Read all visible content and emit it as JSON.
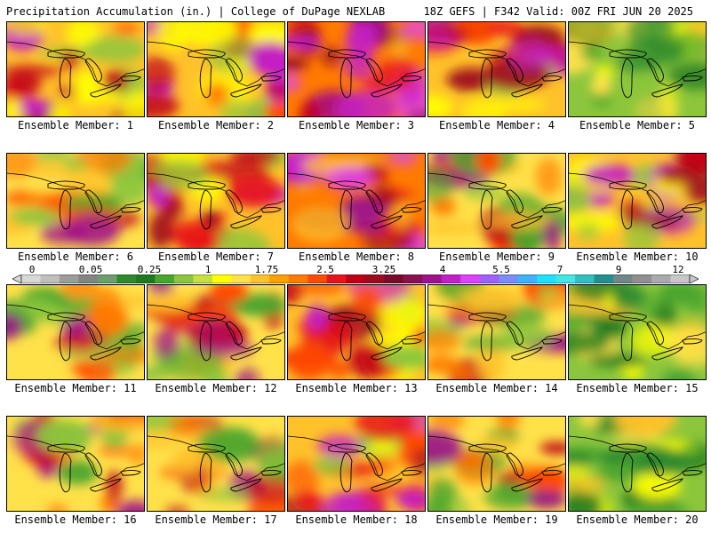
{
  "header": {
    "title": "Precipitation Accumulation (in.) | College of DuPage NEXLAB",
    "run_info": "18Z GEFS | F342 Valid: 00Z FRI JUN 20 2025"
  },
  "colorbar": {
    "labels": [
      "0",
      "0.05",
      "0.25",
      "1",
      "1.75",
      "2.5",
      "3.25",
      "4",
      "5.5",
      "7",
      "9",
      "12"
    ],
    "colors": [
      "#d8d8d8",
      "#bfbfbf",
      "#9c9c9c",
      "#848484",
      "#6e9e6e",
      "#2f8a2f",
      "#1f7a1f",
      "#4aa52e",
      "#8cc63c",
      "#c6e03c",
      "#ffff00",
      "#ffe14a",
      "#ffc22a",
      "#ff9f00",
      "#ff7a00",
      "#ff4a00",
      "#e8141a",
      "#c00018",
      "#9e0a20",
      "#7a0a28",
      "#8a1050",
      "#a0128a",
      "#c41ec6",
      "#e040ff",
      "#a060ff",
      "#7a8aff",
      "#40b0ff",
      "#20e0ff",
      "#40e8e0",
      "#30c0c0",
      "#209090",
      "#708888",
      "#909090",
      "#aaaaaa",
      "#c8c8c8"
    ]
  },
  "members": [
    {
      "label": "Ensemble Member: 1",
      "scheme": "wet"
    },
    {
      "label": "Ensemble Member: 2",
      "scheme": "wet"
    },
    {
      "label": "Ensemble Member: 3",
      "scheme": "verywet"
    },
    {
      "label": "Ensemble Member: 4",
      "scheme": "wet"
    },
    {
      "label": "Ensemble Member: 5",
      "scheme": "dry"
    },
    {
      "label": "Ensemble Member: 6",
      "scheme": "mixed"
    },
    {
      "label": "Ensemble Member: 7",
      "scheme": "wet"
    },
    {
      "label": "Ensemble Member: 8",
      "scheme": "verywet"
    },
    {
      "label": "Ensemble Member: 9",
      "scheme": "mixed"
    },
    {
      "label": "Ensemble Member: 10",
      "scheme": "wet"
    },
    {
      "label": "Ensemble Member: 11",
      "scheme": "mixed"
    },
    {
      "label": "Ensemble Member: 12",
      "scheme": "mixed"
    },
    {
      "label": "Ensemble Member: 13",
      "scheme": "wet"
    },
    {
      "label": "Ensemble Member: 14",
      "scheme": "mixed"
    },
    {
      "label": "Ensemble Member: 15",
      "scheme": "dry"
    },
    {
      "label": "Ensemble Member: 16",
      "scheme": "mixed"
    },
    {
      "label": "Ensemble Member: 17",
      "scheme": "mixed"
    },
    {
      "label": "Ensemble Member: 18",
      "scheme": "wet"
    },
    {
      "label": "Ensemble Member: 19",
      "scheme": "mixed"
    },
    {
      "label": "Ensemble Member: 20",
      "scheme": "dry"
    }
  ]
}
